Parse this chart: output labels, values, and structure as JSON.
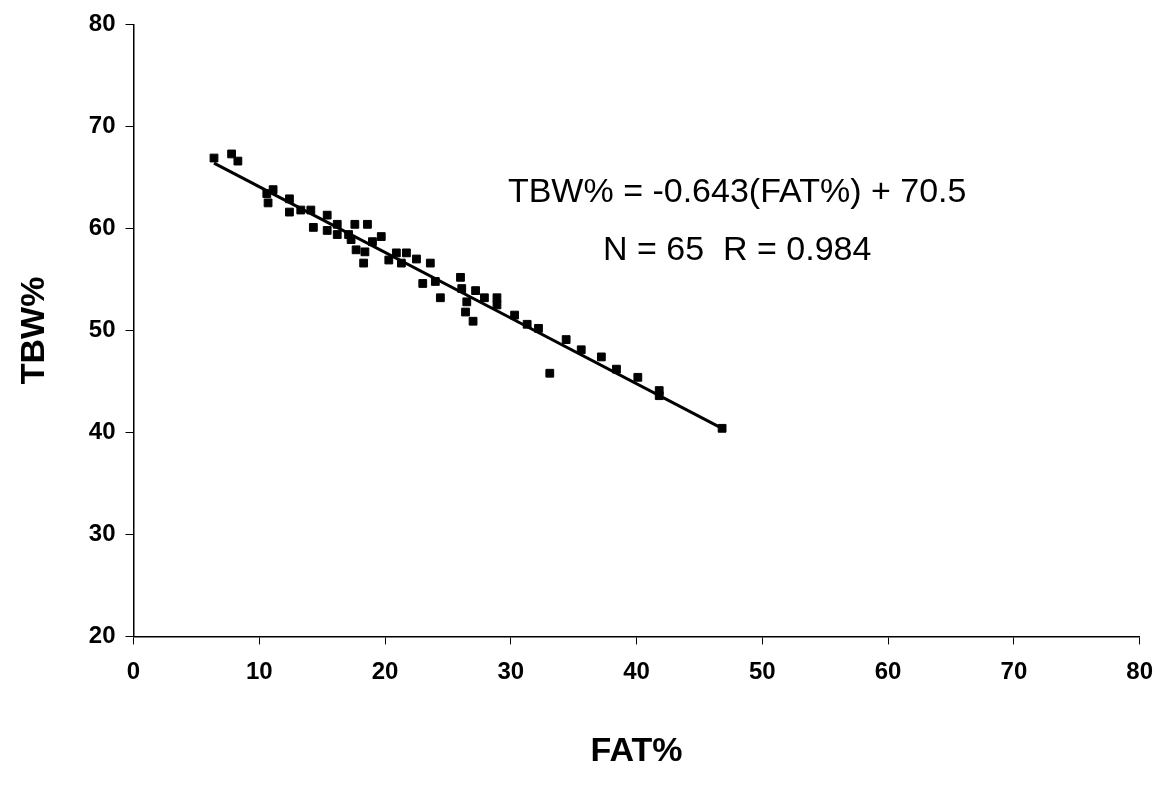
{
  "chart_data": {
    "type": "scatter",
    "xlabel": "FAT%",
    "ylabel": "TBW%",
    "xlim": [
      0,
      80
    ],
    "xticks": [
      0,
      10,
      20,
      30,
      40,
      50,
      60,
      70,
      80
    ],
    "ylim": [
      20,
      80
    ],
    "yticks": [
      20,
      30,
      40,
      50,
      60,
      70,
      80
    ],
    "grid": false,
    "legend": false,
    "marker": "square",
    "annotations": [
      "TBW% = -0.643(FAT%) + 70.5",
      "N = 65  R = 0.984"
    ],
    "series": [
      {
        "color": "#000000",
        "x": [
          6.4,
          7.8,
          8.3,
          11.1,
          10.6,
          10.7,
          12.4,
          12.4,
          13.3,
          14.1,
          14.3,
          15.4,
          15.4,
          16.2,
          16.2,
          17.1,
          17.6,
          17.3,
          18.6,
          17.7,
          18.4,
          18.3,
          19.0,
          19.7,
          20.3,
          20.9,
          21.7,
          21.3,
          22.5,
          23.6,
          23.0,
          24.0,
          24.4,
          26.0,
          26.1,
          27.2,
          26.5,
          26.4,
          27.0,
          27.9,
          28.9,
          28.9,
          30.3,
          31.3,
          32.2,
          33.1,
          34.4,
          35.6,
          37.2,
          38.4,
          40.1,
          41.8,
          41.8,
          46.8
        ],
        "values": [
          66.9,
          67.3,
          66.6,
          63.8,
          63.4,
          62.5,
          62.9,
          61.6,
          61.8,
          61.8,
          60.1,
          61.3,
          59.8,
          60.4,
          59.4,
          59.4,
          60.4,
          58.9,
          60.4,
          57.9,
          57.7,
          56.6,
          58.7,
          59.2,
          56.9,
          57.6,
          57.6,
          56.6,
          57.0,
          56.6,
          54.6,
          54.8,
          53.2,
          55.2,
          54.1,
          53.9,
          52.8,
          51.8,
          50.9,
          53.2,
          53.2,
          52.5,
          51.5,
          50.6,
          50.2,
          45.8,
          49.1,
          48.1,
          47.4,
          46.2,
          45.4,
          44.1,
          43.6,
          40.4
        ]
      },
      {
        "type": "line",
        "color": "#000000",
        "marker": "none",
        "x": [
          6.4,
          46.8
        ],
        "values": [
          66.4,
          40.4
        ]
      }
    ]
  }
}
